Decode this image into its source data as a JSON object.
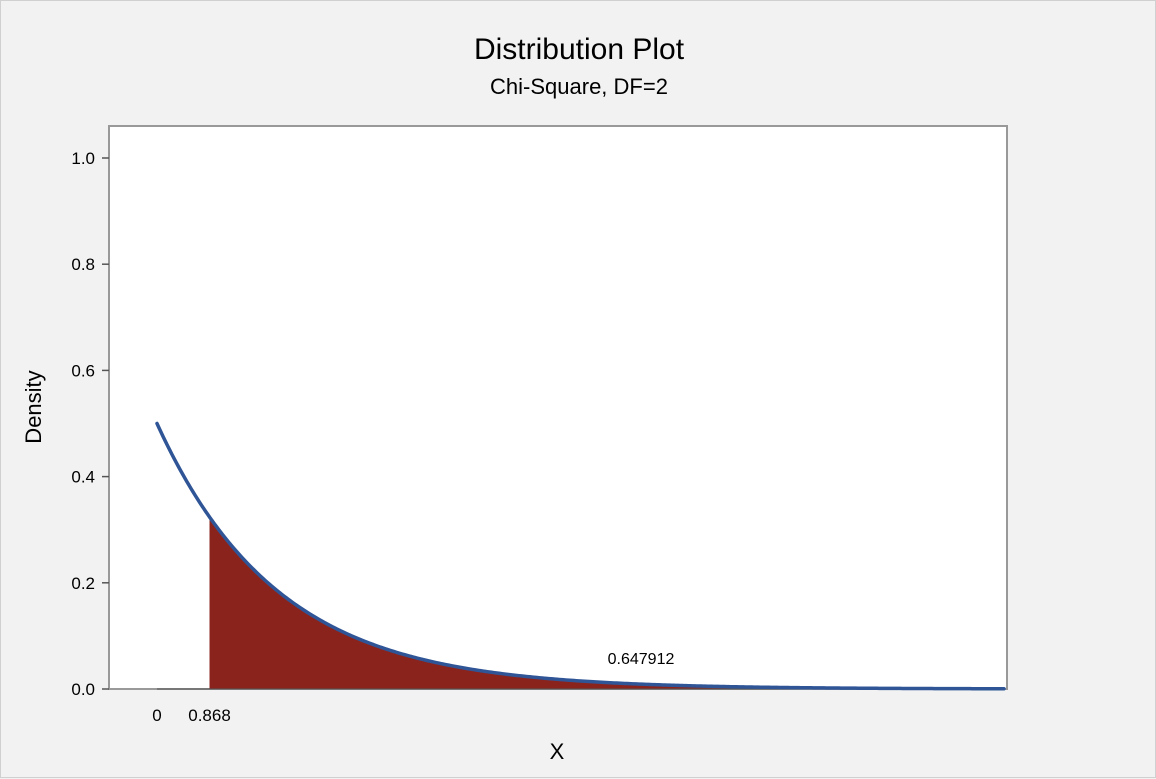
{
  "chart_data": {
    "type": "area",
    "title": "Distribution Plot",
    "subtitle": "Chi-Square, DF=2",
    "xlabel": "X",
    "ylabel": "Density",
    "xlim": [
      0,
      14
    ],
    "ylim": [
      0,
      1.0
    ],
    "yticks": [
      "0.0",
      "0.2",
      "0.4",
      "0.6",
      "0.8",
      "1.0"
    ],
    "xticks": [
      {
        "value": 0,
        "label": "0"
      },
      {
        "value": 0.868,
        "label": "0.868"
      }
    ],
    "distribution": {
      "family": "chi-square",
      "df": 2
    },
    "shaded_region": {
      "from": 0.868,
      "to": 14,
      "area": 0.647912
    },
    "area_label": "0.647912",
    "colors": {
      "curve": "#2f5597",
      "fill": "#8b231d",
      "frame": "#999999",
      "background": "#f2f2f2",
      "plot_background": "#ffffff"
    }
  }
}
